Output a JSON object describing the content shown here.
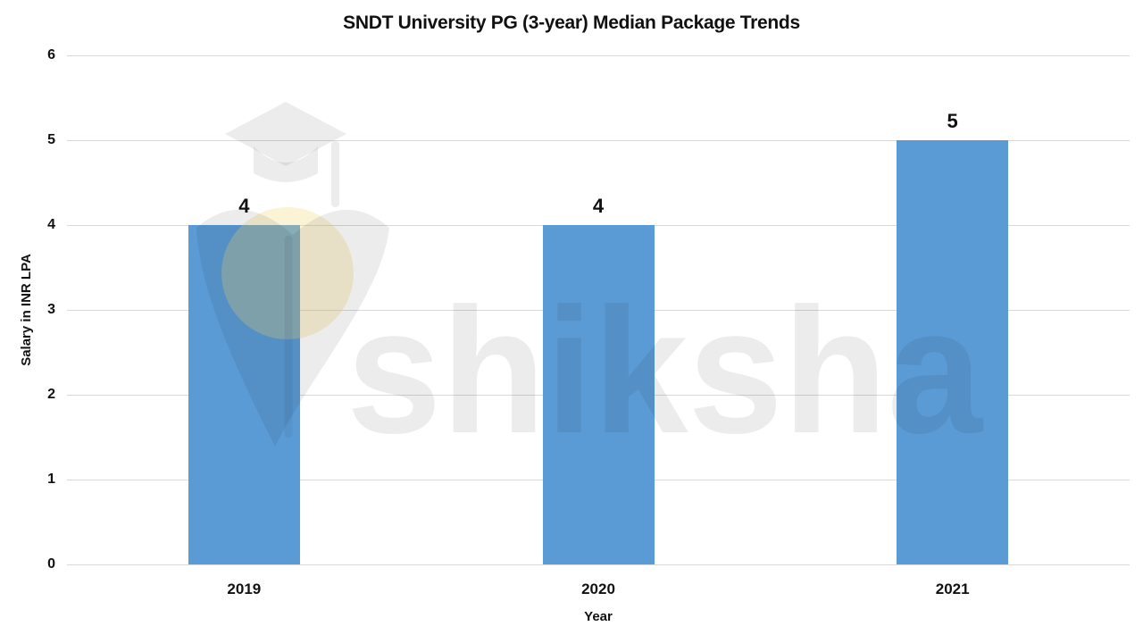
{
  "chart_data": {
    "type": "bar",
    "title": "SNDT University PG (3-year) Median Package Trends",
    "categories": [
      "2019",
      "2020",
      "2021"
    ],
    "values": [
      4,
      4,
      5
    ],
    "data_labels": [
      "4",
      "4",
      "5"
    ],
    "xlabel": "Year",
    "ylabel": "Salary in INR LPA",
    "ylim": [
      0,
      6
    ],
    "yticks": [
      0,
      1,
      2,
      3,
      4,
      5,
      6
    ],
    "grid": true,
    "legend": false,
    "bar_color": "#5b9bd5"
  },
  "watermark": {
    "text": "shiksha"
  },
  "colors": {
    "bar": "#5b9bd5",
    "gridline": "#d9d9d9",
    "label_text": "#111111",
    "watermark_gray": "rgba(0,0,0,0.075)",
    "watermark_slit": "rgba(0,0,0,0.05)",
    "watermark_cream": "rgba(243,214,118,0.30)"
  }
}
